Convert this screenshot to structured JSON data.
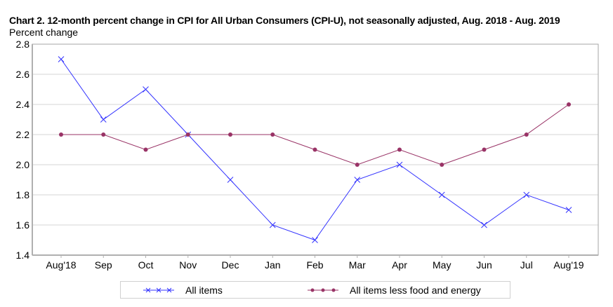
{
  "chart_data": {
    "type": "line",
    "title": "Chart 2. 12-month percent change in CPI for All Urban Consumers (CPI-U), not seasonally adjusted, Aug. 2018 - Aug. 2019",
    "xlabel": "",
    "ylabel": "Percent change",
    "ylim": [
      1.4,
      2.8
    ],
    "yticks": [
      "1.4",
      "1.6",
      "1.8",
      "2.0",
      "2.2",
      "2.4",
      "2.6",
      "2.8"
    ],
    "grid": true,
    "legend_position": "bottom",
    "categories": [
      "Aug'18",
      "Sep",
      "Oct",
      "Nov",
      "Dec",
      "Jan",
      "Feb",
      "Mar",
      "Apr",
      "May",
      "Jun",
      "Jul",
      "Aug'19"
    ],
    "series": [
      {
        "name": "All items",
        "color": "#3333ff",
        "marker": "x",
        "values": [
          2.7,
          2.3,
          2.5,
          2.2,
          1.9,
          1.6,
          1.5,
          1.9,
          2.0,
          1.8,
          1.6,
          1.8,
          1.7
        ]
      },
      {
        "name": "All items less food and energy",
        "color": "#993366",
        "marker": "dot",
        "values": [
          2.2,
          2.2,
          2.1,
          2.2,
          2.2,
          2.2,
          2.1,
          2.0,
          2.1,
          2.0,
          2.1,
          2.2,
          2.4
        ]
      }
    ]
  }
}
